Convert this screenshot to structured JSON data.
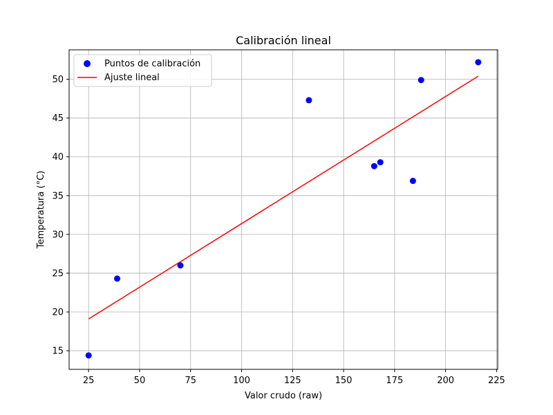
{
  "chart_data": {
    "type": "scatter",
    "title": "Calibración lineal",
    "xlabel": "Valor crudo (raw)",
    "ylabel": "Temperatura (°C)",
    "xlim": [
      15.45,
      225.55
    ],
    "ylim": [
      12.6,
      53.8
    ],
    "xticks": [
      25,
      50,
      75,
      100,
      125,
      150,
      175,
      200,
      225
    ],
    "yticks": [
      15,
      20,
      25,
      30,
      35,
      40,
      45,
      50
    ],
    "grid": true,
    "legend_position": "top-left",
    "series": [
      {
        "name": "Puntos de calibración",
        "kind": "scatter",
        "color": "#0000ff",
        "x": [
          25,
          39,
          70,
          133,
          165,
          168,
          184,
          188,
          216
        ],
        "y": [
          14.4,
          24.3,
          26.0,
          47.3,
          38.8,
          39.3,
          36.9,
          49.9,
          52.2
        ]
      },
      {
        "name": "Ajuste lineal",
        "kind": "line",
        "color": "#ff0000",
        "x": [
          25,
          216
        ],
        "y": [
          19.1,
          50.4
        ]
      }
    ]
  }
}
